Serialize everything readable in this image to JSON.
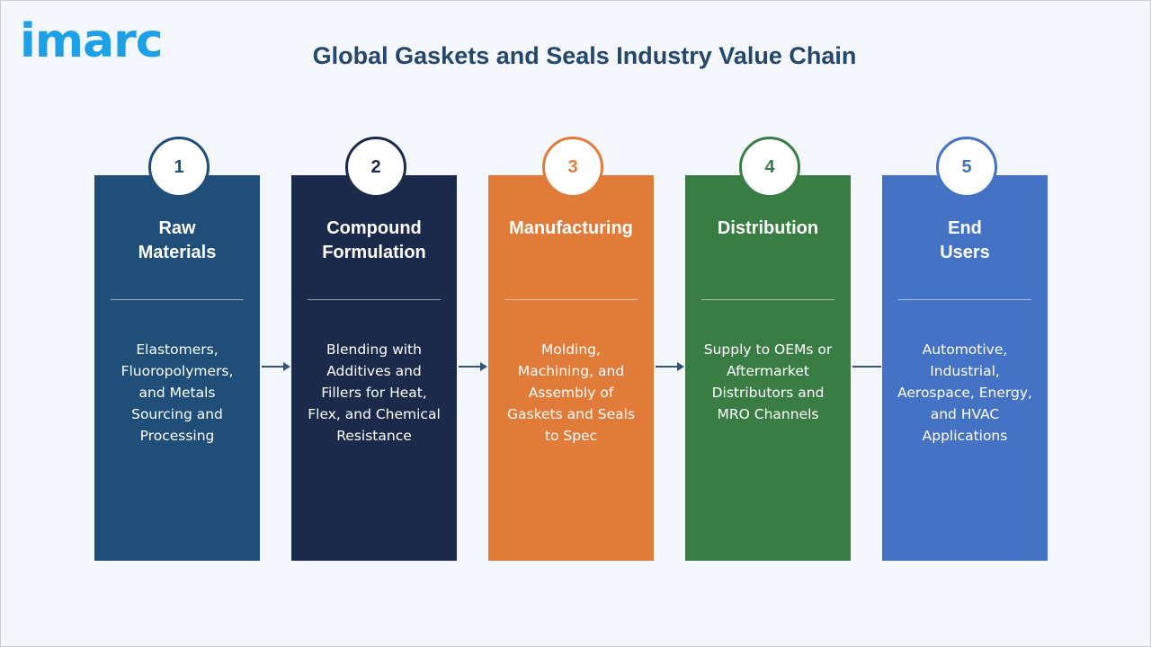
{
  "brand": {
    "logo_text": "imarc"
  },
  "title": "Global Gaskets and Seals Industry Value Chain",
  "stages": [
    {
      "number": "1",
      "title_line1": "Raw",
      "title_line2": "Materials",
      "description": [
        "Elastomers,",
        "Fluoropolymers,",
        "and Metals",
        "Sourcing and",
        "Processing"
      ],
      "color": "#1f4e79"
    },
    {
      "number": "2",
      "title_line1": "Compound",
      "title_line2": "Formulation",
      "description": [
        "Blending with",
        "Additives and",
        "Fillers for Heat,",
        "Flex, and Chemical",
        "Resistance"
      ],
      "color": "#1b2a4a"
    },
    {
      "number": "3",
      "title_line1": "Manufacturing",
      "title_line2": "",
      "description": [
        "Molding,",
        "Machining, and",
        "Assembly of",
        "Gaskets and Seals",
        "to Spec"
      ],
      "color": "#e07b39"
    },
    {
      "number": "4",
      "title_line1": "Distribution",
      "title_line2": "",
      "description": [
        "Supply to OEMs or",
        "Aftermarket",
        "Distributors and",
        "MRO Channels"
      ],
      "color": "#3a7d44"
    },
    {
      "number": "5",
      "title_line1": "End",
      "title_line2": "Users",
      "description": [
        "Automotive,",
        "Industrial,",
        "Aerospace, Energy,",
        "and HVAC",
        "Applications"
      ],
      "color": "#4472c4"
    }
  ]
}
